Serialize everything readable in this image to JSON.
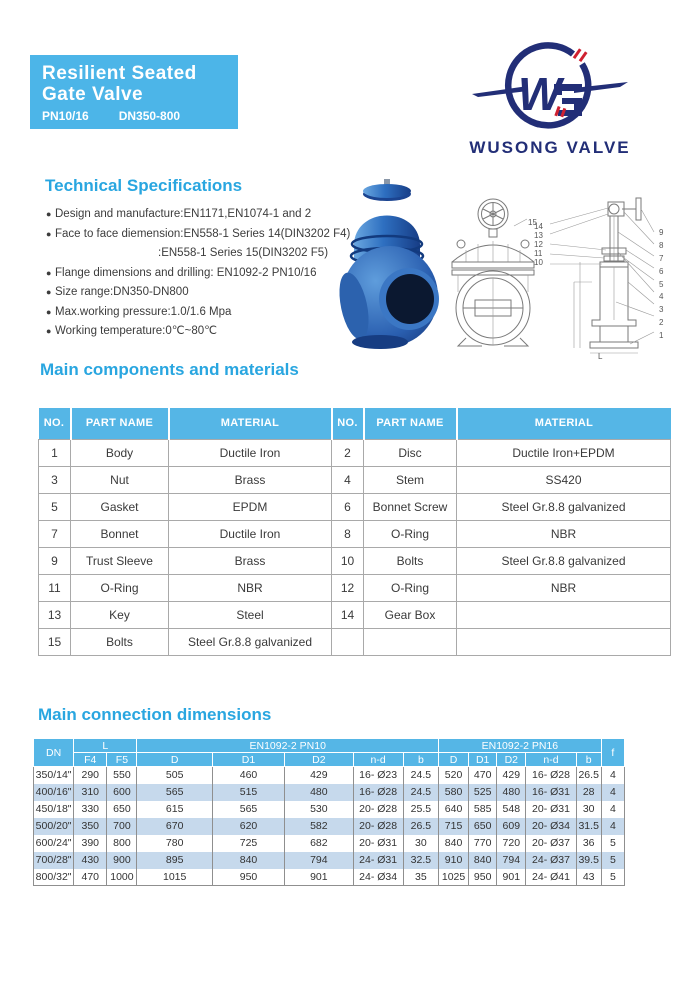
{
  "banner": {
    "title_line1": "Resilient Seated",
    "title_line2": "Gate Valve",
    "pn": "PN10/16",
    "dn": "DN350-800",
    "bg_color": "#4cb5e8"
  },
  "logo": {
    "brand": "WUSONG VALVE",
    "monogram": "W",
    "navy": "#222e77",
    "red": "#cf2030"
  },
  "tech_specs": {
    "title": "Technical Specifications",
    "items": [
      {
        "dot": "●",
        "cls": "",
        "text": "Design and manufacture:EN1171,EN1074-1 and 2"
      },
      {
        "dot": "●",
        "cls": "",
        "text": "Face to face diemension:EN558-1 Series 14(DIN3202 F4)"
      },
      {
        "dot": "",
        "cls": "cont",
        "text": ":EN558-1 Series 15(DIN3202 F5)"
      },
      {
        "dot": "●",
        "cls": "",
        "text": "Flange dimensions and drilling: EN1092-2 PN10/16"
      },
      {
        "dot": "●",
        "cls": "",
        "text": "Size range:DN350-DN800"
      },
      {
        "dot": "●",
        "cls": "",
        "text": "Max.working pressure:1.0/1.6 Mpa"
      },
      {
        "dot": "●",
        "cls": "",
        "text": "Working temperature:0℃~80℃"
      }
    ]
  },
  "components": {
    "title": "Main components and materials",
    "header": [
      "NO.",
      "PART NAME",
      "MATERIAL",
      "NO.",
      "PART NAME",
      "MATERIAL"
    ],
    "rows": [
      [
        "1",
        "Body",
        "Ductile Iron",
        "2",
        "Disc",
        "Ductile Iron+EPDM"
      ],
      [
        "3",
        "Nut",
        "Brass",
        "4",
        "Stem",
        "SS420"
      ],
      [
        "5",
        "Gasket",
        "EPDM",
        "6",
        "Bonnet Screw",
        "Steel Gr.8.8 galvanized"
      ],
      [
        "7",
        "Bonnet",
        "Ductile Iron",
        "8",
        "O-Ring",
        "NBR"
      ],
      [
        "9",
        "Trust Sleeve",
        "Brass",
        "10",
        "Bolts",
        "Steel Gr.8.8 galvanized"
      ],
      [
        "11",
        "O-Ring",
        "NBR",
        "12",
        "O-Ring",
        "NBR"
      ],
      [
        "13",
        "Key",
        "Steel",
        "14",
        "Gear Box",
        ""
      ],
      [
        "15",
        "Bolts",
        "Steel Gr.8.8 galvanized",
        "",
        "",
        ""
      ]
    ]
  },
  "dimensions": {
    "title": "Main connection dimensions",
    "header": {
      "dn": "DN",
      "l": "L",
      "f4": "F4",
      "f5": "F5",
      "pn10": "EN1092-2 PN10",
      "pn16": "EN1092-2 PN16",
      "d": "D",
      "d1": "D1",
      "d2": "D2",
      "nd": "n-d",
      "b": "b",
      "f": "f"
    },
    "rows": [
      [
        "350/14\"",
        "290",
        "550",
        "505",
        "460",
        "429",
        "16- Ø23",
        "24.5",
        "520",
        "470",
        "429",
        "16- Ø28",
        "26.5",
        "4"
      ],
      [
        "400/16\"",
        "310",
        "600",
        "565",
        "515",
        "480",
        "16- Ø28",
        "24.5",
        "580",
        "525",
        "480",
        "16- Ø31",
        "28",
        "4"
      ],
      [
        "450/18\"",
        "330",
        "650",
        "615",
        "565",
        "530",
        "20- Ø28",
        "25.5",
        "640",
        "585",
        "548",
        "20- Ø31",
        "30",
        "4"
      ],
      [
        "500/20\"",
        "350",
        "700",
        "670",
        "620",
        "582",
        "20- Ø28",
        "26.5",
        "715",
        "650",
        "609",
        "20- Ø34",
        "31.5",
        "4"
      ],
      [
        "600/24\"",
        "390",
        "800",
        "780",
        "725",
        "682",
        "20- Ø31",
        "30",
        "840",
        "770",
        "720",
        "20- Ø37",
        "36",
        "5"
      ],
      [
        "700/28\"",
        "430",
        "900",
        "895",
        "840",
        "794",
        "24- Ø31",
        "32.5",
        "910",
        "840",
        "794",
        "24- Ø37",
        "39.5",
        "5"
      ],
      [
        "800/32\"",
        "470",
        "1000",
        "1015",
        "950",
        "901",
        "24- Ø34",
        "35",
        "1025",
        "950",
        "901",
        "24- Ø41",
        "43",
        "5"
      ]
    ]
  },
  "drawings": {
    "front_part_label": "15",
    "section_left_labels": [
      "14",
      "13",
      "12",
      "11",
      "10"
    ],
    "section_right_labels": [
      "9",
      "8",
      "7",
      "6",
      "5",
      "4",
      "3",
      "2",
      "1"
    ],
    "dim_label": "L"
  }
}
